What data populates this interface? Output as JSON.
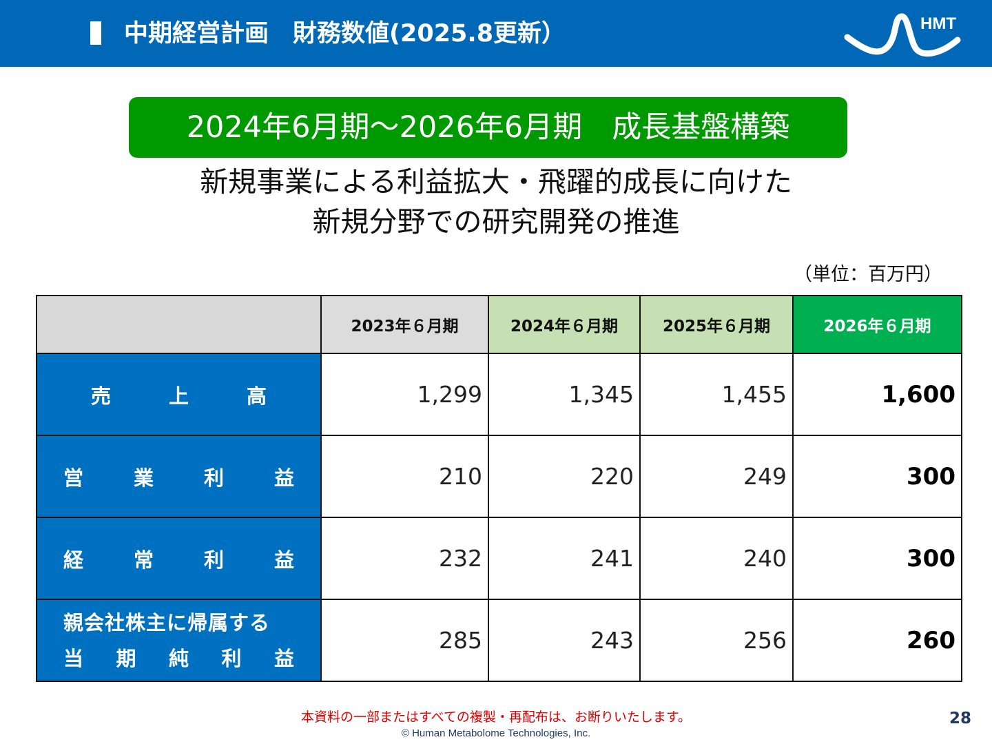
{
  "header": {
    "title": "中期経営計画　財務数値(2025.8更新）",
    "logo_text": "HMT"
  },
  "banner": {
    "text": "2024年6月期～2026年6月期　成長基盤構築"
  },
  "subtitle": {
    "line1": "新規事業による利益拡大・飛躍的成長に向けた",
    "line2": "新規分野での研究開発の推進"
  },
  "unit_note": "（単位：百万円）",
  "table": {
    "columns": [
      "2023年６月期",
      "2024年６月期",
      "2025年６月期",
      "2026年６月期"
    ],
    "rows": [
      {
        "label_chars": [
          "売",
          "上",
          "高"
        ],
        "values": [
          "1,299",
          "1,345",
          "1,455",
          "1,600"
        ]
      },
      {
        "label_chars": [
          "営",
          "業",
          "利",
          "益"
        ],
        "values": [
          "210",
          "220",
          "249",
          "300"
        ]
      },
      {
        "label_chars": [
          "経",
          "常",
          "利",
          "益"
        ],
        "values": [
          "232",
          "241",
          "240",
          "300"
        ]
      },
      {
        "label_line1": "親会社株主に帰属する",
        "label_chars2": [
          "当",
          "期",
          "純",
          "利",
          "益"
        ],
        "values": [
          "285",
          "243",
          "256",
          "260"
        ]
      }
    ]
  },
  "footer": {
    "notice": "本資料の一部またはすべての複製・再配布は、お断りいたします。",
    "copyright": "© Human Metabolome Technologies, Inc.",
    "page_number": "28"
  },
  "colors": {
    "header_blue": "#0068b7",
    "banner_green": "#009900",
    "label_blue": "#0070c0",
    "col_2024_2025": "#c6e0b4",
    "col_2026": "#00b050",
    "notice_red": "#e00000"
  }
}
